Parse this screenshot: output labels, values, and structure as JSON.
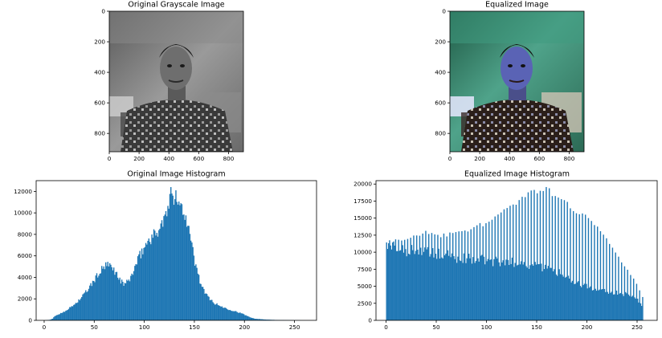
{
  "figure": {
    "background": "#ffffff",
    "bar_color": "#1f77b4",
    "axis_color": "#000000"
  },
  "images": [
    {
      "title": "Original Grayscale Image",
      "xticks": [
        "0",
        "200",
        "400",
        "600",
        "800"
      ],
      "yticks": [
        "0",
        "200",
        "400",
        "600",
        "800"
      ],
      "xlim": [
        0,
        900
      ],
      "ylim": [
        0,
        920
      ],
      "content": "grayscale portrait photo",
      "style": "grayscale"
    },
    {
      "title": "Equalized Image",
      "xticks": [
        "0",
        "200",
        "400",
        "600",
        "800"
      ],
      "yticks": [
        "0",
        "200",
        "400",
        "600",
        "800"
      ],
      "xlim": [
        0,
        900
      ],
      "ylim": [
        0,
        920
      ],
      "content": "color-mapped portrait photo",
      "style": "color"
    }
  ],
  "chart_data": [
    {
      "type": "bar",
      "title": "Original Image Histogram",
      "xlabel": "",
      "ylabel": "",
      "xlim": [
        -8,
        272
      ],
      "ylim": [
        0,
        13000
      ],
      "xticks": [
        0,
        50,
        100,
        150,
        200,
        250
      ],
      "yticks": [
        0,
        2000,
        4000,
        6000,
        8000,
        10000,
        12000
      ],
      "bins": "0-255 (256 bins)",
      "control_points": [
        [
          0,
          0
        ],
        [
          5,
          50
        ],
        [
          8,
          150
        ],
        [
          10,
          400
        ],
        [
          15,
          600
        ],
        [
          20,
          850
        ],
        [
          25,
          1150
        ],
        [
          30,
          1500
        ],
        [
          35,
          1950
        ],
        [
          40,
          2500
        ],
        [
          45,
          3100
        ],
        [
          50,
          3800
        ],
        [
          55,
          4500
        ],
        [
          60,
          5000
        ],
        [
          65,
          5100
        ],
        [
          70,
          4600
        ],
        [
          75,
          3800
        ],
        [
          78,
          3400
        ],
        [
          82,
          3500
        ],
        [
          86,
          4000
        ],
        [
          90,
          4900
        ],
        [
          95,
          6000
        ],
        [
          100,
          6900
        ],
        [
          105,
          7600
        ],
        [
          110,
          8000
        ],
        [
          115,
          8600
        ],
        [
          120,
          9500
        ],
        [
          125,
          10900
        ],
        [
          128,
          11600
        ],
        [
          130,
          11700
        ],
        [
          134,
          10700
        ],
        [
          138,
          10500
        ],
        [
          142,
          9400
        ],
        [
          146,
          7500
        ],
        [
          150,
          5400
        ],
        [
          155,
          3700
        ],
        [
          160,
          2500
        ],
        [
          170,
          1550
        ],
        [
          180,
          1150
        ],
        [
          190,
          850
        ],
        [
          195,
          700
        ],
        [
          200,
          500
        ],
        [
          205,
          300
        ],
        [
          210,
          150
        ],
        [
          220,
          80
        ],
        [
          230,
          40
        ],
        [
          245,
          15
        ],
        [
          255,
          5
        ]
      ],
      "spikes": [
        {
          "bin": 126,
          "value": 12400
        },
        {
          "bin": 127,
          "value": 11800
        },
        {
          "bin": 131,
          "value": 12100
        },
        {
          "bin": 136,
          "value": 10900
        }
      ]
    },
    {
      "type": "bar",
      "title": "Equalized Image Histogram",
      "xlabel": "",
      "ylabel": "",
      "xlim": [
        -10,
        270
      ],
      "ylim": [
        0,
        20500
      ],
      "xticks": [
        0,
        50,
        100,
        150,
        200,
        250
      ],
      "yticks": [
        0,
        2500,
        5000,
        7500,
        10000,
        12500,
        15000,
        17500,
        20000
      ],
      "bins": "0-255 (256 bins)",
      "base_points": [
        [
          0,
          10800
        ],
        [
          20,
          10300
        ],
        [
          40,
          10000
        ],
        [
          60,
          9500
        ],
        [
          80,
          9000
        ],
        [
          100,
          8800
        ],
        [
          120,
          8500
        ],
        [
          140,
          8300
        ],
        [
          160,
          7700
        ],
        [
          170,
          7000
        ],
        [
          180,
          6500
        ],
        [
          190,
          5500
        ],
        [
          200,
          5000
        ],
        [
          210,
          4500
        ],
        [
          220,
          4200
        ],
        [
          230,
          4000
        ],
        [
          240,
          3800
        ],
        [
          250,
          3000
        ],
        [
          255,
          2000
        ]
      ],
      "spike_envelope": [
        [
          0,
          11500
        ],
        [
          20,
          12000
        ],
        [
          40,
          13000
        ],
        [
          50,
          12300
        ],
        [
          60,
          12500
        ],
        [
          70,
          12800
        ],
        [
          80,
          13000
        ],
        [
          90,
          13800
        ],
        [
          100,
          14300
        ],
        [
          110,
          15600
        ],
        [
          120,
          16300
        ],
        [
          130,
          17500
        ],
        [
          140,
          18700
        ],
        [
          150,
          19000
        ],
        [
          160,
          19200
        ],
        [
          170,
          18200
        ],
        [
          180,
          17200
        ],
        [
          190,
          15800
        ],
        [
          200,
          15000
        ],
        [
          210,
          14000
        ],
        [
          220,
          12000
        ],
        [
          230,
          9500
        ],
        [
          240,
          7500
        ],
        [
          250,
          5000
        ],
        [
          255,
          3500
        ]
      ],
      "spike_step": 3
    }
  ]
}
